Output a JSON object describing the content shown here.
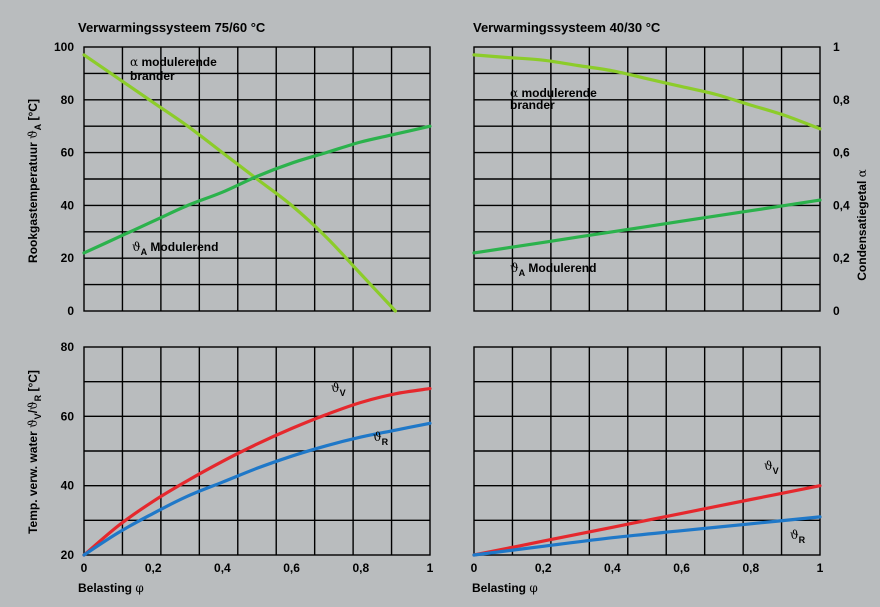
{
  "colors": {
    "background": "#b9bcbe",
    "alpha": "#8ccc2a",
    "theta_a": "#2bb24c",
    "theta_v": "#e5282d",
    "theta_r": "#1f78c8"
  },
  "x_label": {
    "text": "Belasting ",
    "symbol": "φ"
  },
  "left_ylabel_top": {
    "text": "Rookgastemperatuur ",
    "symbol": "ϑ",
    "sub": "A",
    "unit": " [°C]"
  },
  "left_ylabel_bottom": {
    "text": "Temp. verw. water ",
    "s1": "ϑ",
    "sub1": "V",
    "slash": "/",
    "s2": "ϑ",
    "sub2": "R",
    "unit": " [°C]"
  },
  "right_ylabel": {
    "text": "Condensatiegetal ",
    "symbol": "α"
  },
  "panels": {
    "left": {
      "title": "Verwarmingssysteem 75/60 °C"
    },
    "right": {
      "title": "Verwarmingssysteem 40/30 °C"
    }
  },
  "annotations": {
    "alpha_label": {
      "symbol": "α",
      "line1": " modulerende",
      "line2": "brander"
    },
    "theta_a_label": {
      "symbol": "ϑ",
      "sub": "A",
      "text": " Modulerend"
    },
    "theta_v_label": {
      "symbol": "ϑ",
      "sub": "V"
    },
    "theta_r_label": {
      "symbol": "ϑ",
      "sub": "R"
    }
  },
  "chart_data": [
    {
      "type": "line",
      "title": "Verwarmingssysteem 75/60 °C",
      "xlabel": "Belasting φ",
      "xlim": [
        0,
        1
      ],
      "x_ticks": [
        "0",
        "0,2",
        "0,4",
        "0,6",
        "0,8",
        "1"
      ],
      "top": {
        "ylabel": "Rookgastemperatuur ϑA [°C]",
        "ylim": [
          0,
          100
        ],
        "y_ticks": [
          "0",
          "20",
          "40",
          "60",
          "80",
          "100"
        ],
        "series": [
          {
            "name": "α modulerende brander",
            "color": "#8ccc2a",
            "x": [
              0,
              0.1,
              0.2,
              0.3,
              0.4,
              0.5,
              0.6,
              0.7,
              0.8,
              0.9
            ],
            "values": [
              97,
              88,
              79,
              70,
              60,
              50,
              40,
              28,
              14,
              0
            ]
          },
          {
            "name": "ϑA Modulerend",
            "color": "#2bb24c",
            "x": [
              0,
              0.1,
              0.2,
              0.3,
              0.4,
              0.5,
              0.6,
              0.7,
              0.8,
              0.9,
              1
            ],
            "values": [
              22,
              28,
              34,
              40,
              45,
              51,
              56,
              60,
              64,
              67,
              70
            ]
          }
        ]
      },
      "bottom": {
        "ylabel": "Temp. verw. water ϑV/ϑR [°C]",
        "ylim": [
          20,
          80
        ],
        "y_ticks": [
          "20",
          "40",
          "60",
          "80"
        ],
        "series": [
          {
            "name": "ϑV",
            "color": "#e5282d",
            "x": [
              0,
              0.1,
              0.2,
              0.3,
              0.4,
              0.5,
              0.6,
              0.7,
              0.8,
              0.9,
              1
            ],
            "values": [
              20,
              28.5,
              35.5,
              41.5,
              47,
              52,
              56.5,
              60.5,
              64,
              66.5,
              68
            ]
          },
          {
            "name": "ϑR",
            "color": "#1f78c8",
            "x": [
              0,
              0.1,
              0.2,
              0.3,
              0.4,
              0.5,
              0.6,
              0.7,
              0.8,
              0.9,
              1
            ],
            "values": [
              20,
              26.5,
              32,
              37,
              41,
              45,
              48.5,
              51.5,
              54,
              56,
              58
            ]
          }
        ]
      }
    },
    {
      "type": "line",
      "title": "Verwarmingssysteem 40/30 °C",
      "xlabel": "Belasting φ",
      "xlim": [
        0,
        1
      ],
      "x_ticks": [
        "0",
        "0,2",
        "0,4",
        "0,6",
        "0,8",
        "1"
      ],
      "top": {
        "ylabel": "Condensatiegetal α",
        "ylim": [
          0,
          1
        ],
        "y_ticks": [
          "0",
          "0,2",
          "0,4",
          "0,6",
          "0,8",
          "1"
        ],
        "series": [
          {
            "name": "α modulerende brander",
            "color": "#8ccc2a",
            "x": [
              0,
              0.1,
              0.2,
              0.3,
              0.4,
              0.5,
              0.6,
              0.7,
              0.8,
              0.9,
              1
            ],
            "values": [
              0.97,
              0.96,
              0.95,
              0.93,
              0.91,
              0.88,
              0.85,
              0.82,
              0.78,
              0.74,
              0.69
            ]
          }
        ],
        "left_scale_series": [
          {
            "name": "ϑA Modulerend",
            "color": "#2bb24c",
            "unit": "°C",
            "x": [
              0,
              0.2,
              0.4,
              0.6,
              0.8,
              1
            ],
            "values": [
              22,
              26,
              30,
              34,
              38,
              42
            ]
          }
        ]
      },
      "bottom": {
        "ylim": [
          20,
          80
        ],
        "series": [
          {
            "name": "ϑV",
            "color": "#e5282d",
            "x": [
              0,
              0.2,
              0.4,
              0.6,
              0.8,
              1
            ],
            "values": [
              20,
              24,
              28,
              32,
              36,
              40
            ]
          },
          {
            "name": "ϑR",
            "color": "#1f78c8",
            "x": [
              0,
              0.2,
              0.4,
              0.6,
              0.8,
              1
            ],
            "values": [
              20,
              22.5,
              25,
              27,
              29,
              31
            ]
          }
        ]
      }
    }
  ]
}
